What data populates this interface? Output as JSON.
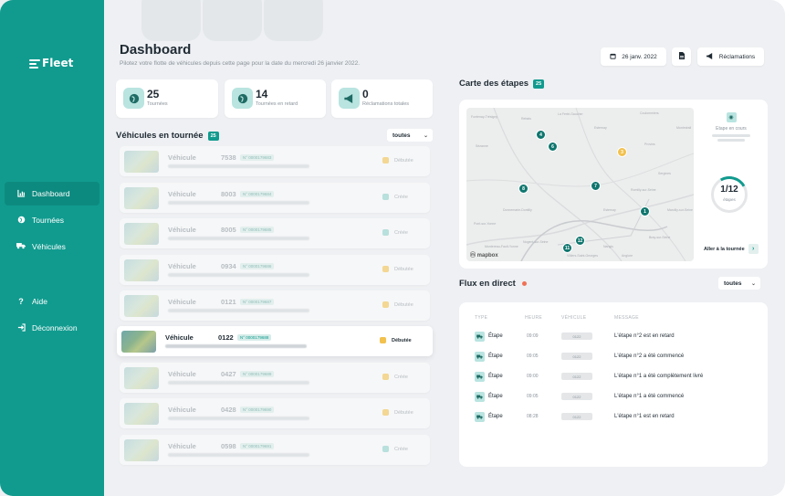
{
  "app": {
    "logo": "Fleet"
  },
  "sidebar": {
    "items": [
      {
        "label": "Dashboard",
        "icon": "chart-icon"
      },
      {
        "label": "Tournées",
        "icon": "globe-icon"
      },
      {
        "label": "Véhicules",
        "icon": "truck-icon"
      }
    ],
    "bottom": [
      {
        "label": "Aide",
        "icon": "help-icon"
      },
      {
        "label": "Déconnexion",
        "icon": "logout-icon"
      }
    ]
  },
  "header": {
    "title": "Dashboard",
    "subtitle": "Pilotez votre flotte de véhicules depuis cette page pour la date du mercredi 26 janvier 2022.",
    "date_button": "26 janv. 2022",
    "reclamations_button": "Réclamations"
  },
  "stats": [
    {
      "value": "25",
      "label": "Tournées"
    },
    {
      "value": "14",
      "label": "Tournées en retard"
    },
    {
      "value": "0",
      "label": "Réclamations totales"
    }
  ],
  "vehicles_section": {
    "title": "Véhicules en tournée",
    "count": "25",
    "filter": "toutes",
    "rows": [
      {
        "label": "Véhicule",
        "number": "7538",
        "id": "N° 0000179683",
        "status": "Débutée",
        "status_color": "#f2c14e"
      },
      {
        "label": "Véhicule",
        "number": "8003",
        "id": "N° 0000179684",
        "status": "Créée",
        "status_color": "#8fd1c9"
      },
      {
        "label": "Véhicule",
        "number": "8005",
        "id": "N° 0000179685",
        "status": "Créée",
        "status_color": "#8fd1c9"
      },
      {
        "label": "Véhicule",
        "number": "0934",
        "id": "N° 0000179686",
        "status": "Débutée",
        "status_color": "#f2c14e"
      },
      {
        "label": "Véhicule",
        "number": "0121",
        "id": "N° 0000179687",
        "status": "Débutée",
        "status_color": "#f2c14e"
      },
      {
        "label": "Véhicule",
        "number": "0122",
        "id": "N° 0000179688",
        "status": "Débutée",
        "status_color": "#f2c14e"
      },
      {
        "label": "Véhicule",
        "number": "0427",
        "id": "N° 0000179689",
        "status": "Créée",
        "status_color": "#f2c14e"
      },
      {
        "label": "Véhicule",
        "number": "0428",
        "id": "N° 0000179690",
        "status": "Débutée",
        "status_color": "#f2c14e"
      },
      {
        "label": "Véhicule",
        "number": "0598",
        "id": "N° 0000179691",
        "status": "Créée",
        "status_color": "#8fd1c9"
      }
    ]
  },
  "map_section": {
    "title": "Carte des étapes",
    "count": "25",
    "etape_label": "Etape en cours",
    "progress": "1/12",
    "progress_fraction": 0.083,
    "progress_label": "étapes",
    "link": "Aller à la tournée",
    "map_credit": "mapbox",
    "place_labels": [
      "Fontenay-Trésigny",
      "Coulommiers",
      "Provins",
      "Montereau-Fault-Yonne",
      "Nogent-sur-Seine",
      "Romilly-sur-Seine",
      "Sézanne",
      "Esternay",
      "Villiers-Saint-Georges",
      "Nangis",
      "Donnemarie-Dontilly",
      "Bray-sur-Seine",
      "Pont-sur-Yonne",
      "Sergines",
      "Rebais",
      "La Ferté-Gaucher",
      "Montmirail",
      "Esternay",
      "Anglure",
      "Marcilly-sur-Seine"
    ],
    "pins": [
      {
        "label": "4",
        "color": "#0f766e"
      },
      {
        "label": "6",
        "color": "#0f766e"
      },
      {
        "label": "3",
        "color": "#f2c14e"
      },
      {
        "label": "7",
        "color": "#0f766e"
      },
      {
        "label": "8",
        "color": "#0f766e"
      },
      {
        "label": "1",
        "color": "#0f766e"
      },
      {
        "label": "12",
        "color": "#0f766e"
      },
      {
        "label": "11",
        "color": "#0f766e"
      }
    ]
  },
  "flux_section": {
    "title": "Flux en direct",
    "filter": "toutes",
    "headers": [
      "TYPE",
      "HEURE",
      "VÉHICULE",
      "MESSAGE"
    ],
    "rows": [
      {
        "type": "Étape",
        "hour": "09:09",
        "vehicle": "0122",
        "message": "L'étape n°2 est en retard"
      },
      {
        "type": "Étape",
        "hour": "09:05",
        "vehicle": "0122",
        "message": "L'étape n°2 a été commencé"
      },
      {
        "type": "Étape",
        "hour": "09:00",
        "vehicle": "0122",
        "message": "L'étape n°1 a été complètement livré"
      },
      {
        "type": "Étape",
        "hour": "09:05",
        "vehicle": "0122",
        "message": "L'étape n°1 a été commencé"
      },
      {
        "type": "Étape",
        "hour": "08:28",
        "vehicle": "0122",
        "message": "L'étape n°1 est en retard"
      }
    ]
  }
}
